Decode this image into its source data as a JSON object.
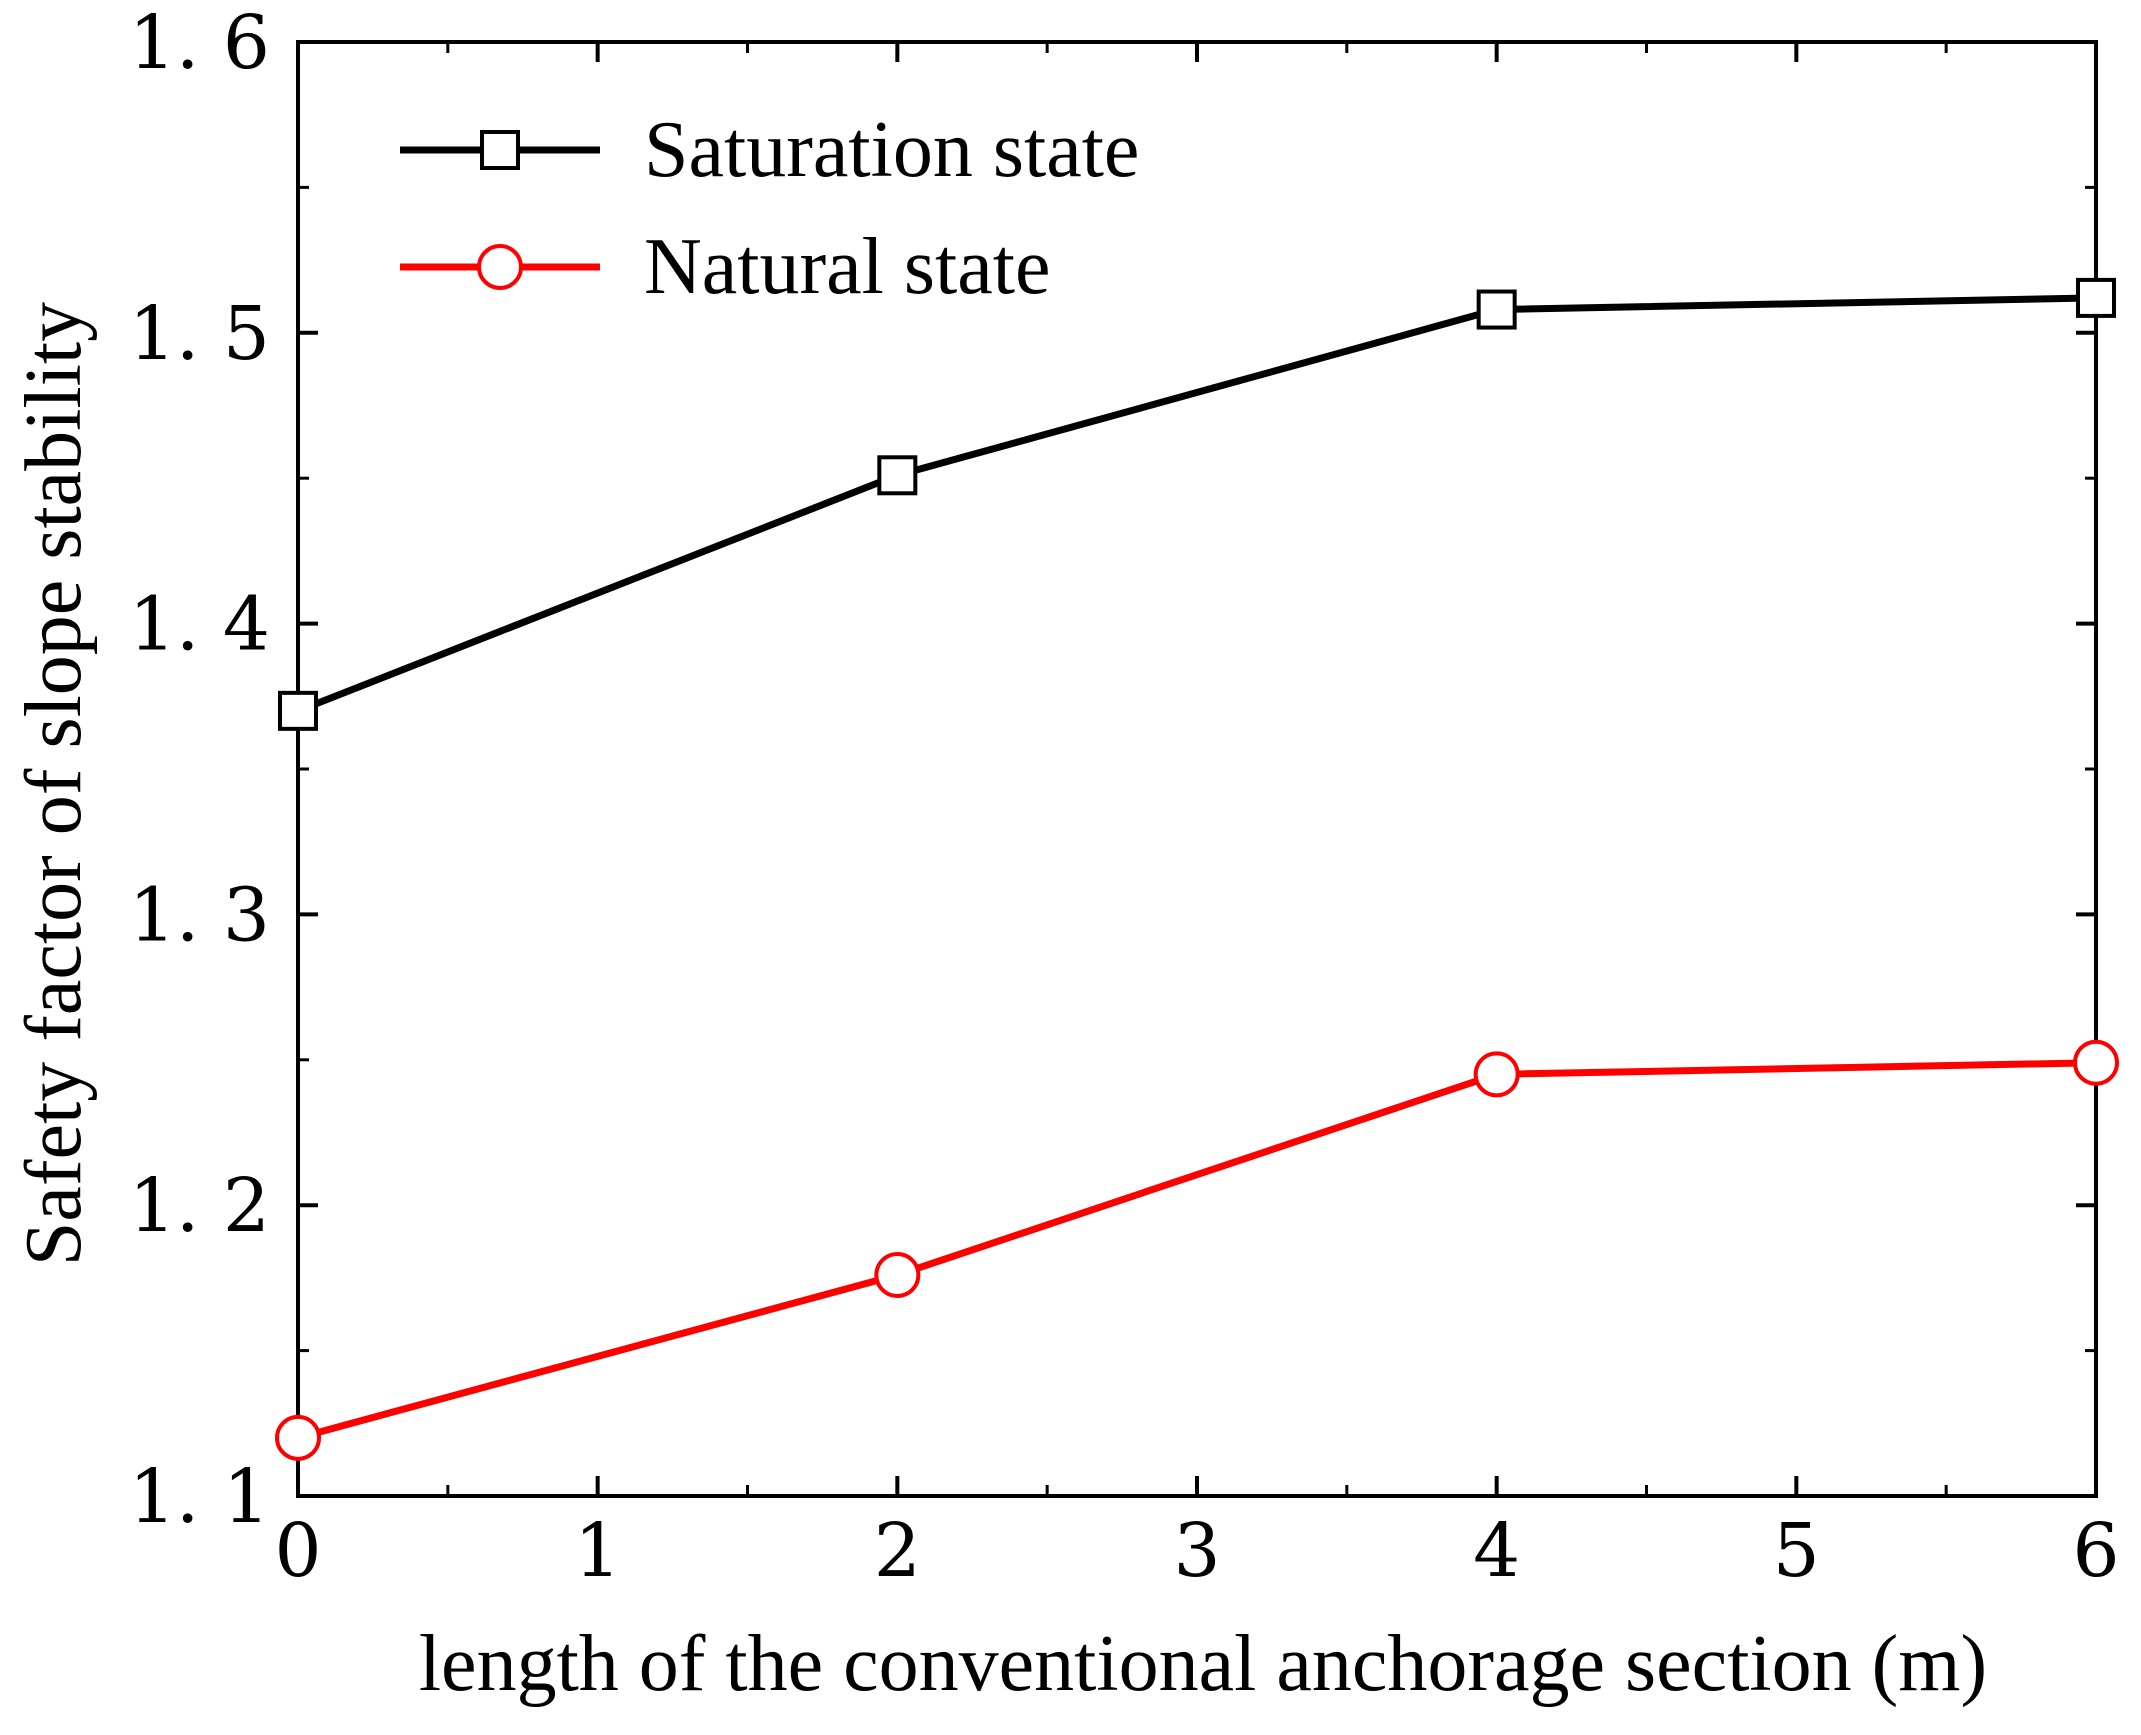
{
  "chart_data": {
    "type": "line",
    "title": "",
    "xlabel": "length of the conventional anchorage section (m)",
    "ylabel": "Safety factor of slope stability",
    "xlim": [
      0,
      6
    ],
    "ylim": [
      1.1,
      1.6
    ],
    "x_ticks": [
      0,
      1,
      2,
      3,
      4,
      5,
      6
    ],
    "x_tick_labels": [
      "0",
      "1",
      "2",
      "3",
      "4",
      "5",
      "6"
    ],
    "x_minor_ticks": [
      0.5,
      1.5,
      2.5,
      3.5,
      4.5,
      5.5
    ],
    "y_ticks": [
      1.1,
      1.2,
      1.3,
      1.4,
      1.5,
      1.6
    ],
    "y_tick_labels": [
      "1. 1",
      "1. 2",
      "1. 3",
      "1. 4",
      "1. 5",
      "1. 6"
    ],
    "y_minor_ticks": [
      1.15,
      1.25,
      1.35,
      1.45,
      1.55
    ],
    "grid": false,
    "legend_position": "top-left",
    "series": [
      {
        "name": "Saturation state",
        "color": "#000000",
        "marker": "square",
        "x": [
          0,
          2,
          4,
          6
        ],
        "values": [
          1.37,
          1.451,
          1.508,
          1.512
        ]
      },
      {
        "name": "Natural state",
        "color": "#ff0000",
        "marker": "circle",
        "x": [
          0,
          2,
          4,
          6
        ],
        "values": [
          1.12,
          1.176,
          1.245,
          1.249
        ]
      }
    ]
  }
}
